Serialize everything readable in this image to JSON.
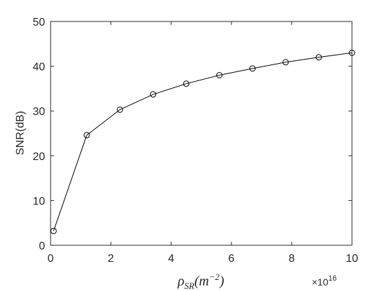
{
  "chart_data": {
    "type": "line",
    "y_label": "SNR(dB)",
    "x_label_parts": [
      "ρ",
      "SR",
      "(m",
      "−2",
      ")"
    ],
    "x_multiplier_parts": [
      "×10",
      "16"
    ],
    "x": [
      0.1,
      1.2,
      2.3,
      3.4,
      4.5,
      5.6,
      6.7,
      7.8,
      8.9,
      10
    ],
    "series": [
      {
        "color": "#000000",
        "marker": "circle",
        "values": [
          3.2,
          24.6,
          30.3,
          33.7,
          36.1,
          38.0,
          39.5,
          40.9,
          42.0,
          43.0
        ]
      }
    ],
    "xlim": [
      0,
      10
    ],
    "xticks": [
      0,
      2,
      4,
      6,
      8,
      10
    ],
    "ylim": [
      0,
      50
    ],
    "yticks": [
      0,
      10,
      20,
      30,
      40,
      50
    ],
    "grid": false,
    "box": true
  }
}
